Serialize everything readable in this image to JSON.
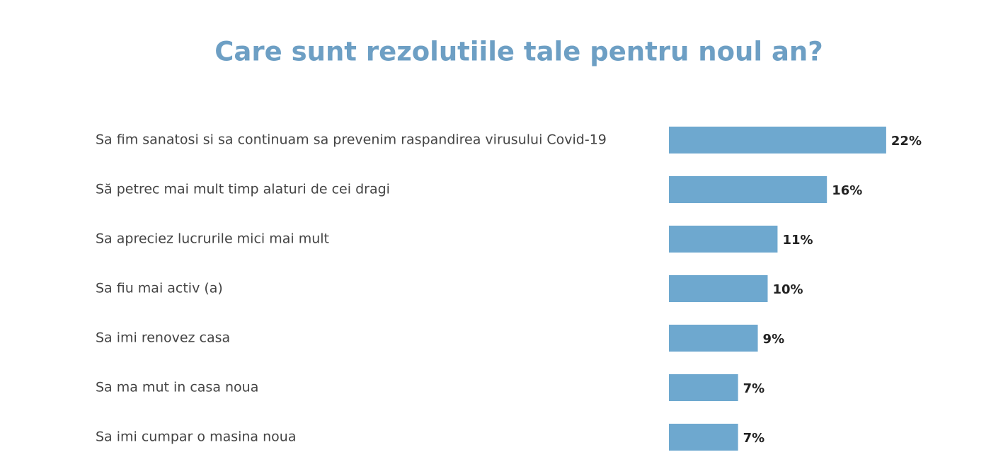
{
  "chart_data": {
    "type": "bar",
    "orientation": "horizontal",
    "title": "Care sunt rezolutiile tale pentru noul an?",
    "categories": [
      "Sa fim sanatosi si sa continuam sa prevenim raspandirea virusului Covid-19",
      "Să petrec mai mult timp alaturi de cei dragi",
      "Sa apreciez lucrurile mici mai mult",
      "Sa fiu mai activ (a)",
      "Sa imi renovez casa",
      "Sa ma mut in casa noua",
      "Sa imi cumpar o masina noua"
    ],
    "values": [
      22,
      16,
      11,
      10,
      9,
      7,
      7
    ],
    "value_labels": [
      "22%",
      "16%",
      "11%",
      "10%",
      "9%",
      "7%",
      "7%"
    ],
    "color": "#6ea8cf"
  }
}
